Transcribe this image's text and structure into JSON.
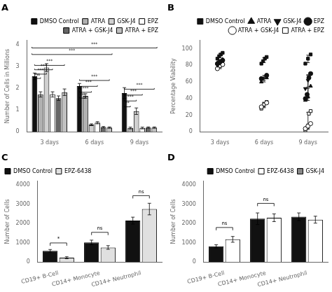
{
  "chart_data": [
    {
      "type": "bar",
      "title": "A",
      "categories": [
        "3 days",
        "6 days",
        "9 days"
      ],
      "series": [
        {
          "name": "DMSO Control",
          "color": "#111111",
          "values": [
            2.55,
            2.1,
            1.78
          ],
          "errors": [
            0.15,
            0.12,
            0.25
          ]
        },
        {
          "name": "ATRA",
          "color": "#b0b0b0",
          "values": [
            1.72,
            1.65,
            0.18
          ],
          "errors": [
            0.12,
            0.1,
            0.04
          ]
        },
        {
          "name": "GSK-J4",
          "color": "#d0d0d0",
          "values": [
            2.95,
            0.33,
            0.95
          ],
          "errors": [
            0.18,
            0.04,
            0.15
          ]
        },
        {
          "name": "EPZ",
          "color": "#ffffff",
          "values": [
            1.72,
            0.42,
            0.18
          ],
          "errors": [
            0.12,
            0.05,
            0.04
          ]
        },
        {
          "name": "ATRA + GSK-J4",
          "color": "#666666",
          "values": [
            1.55,
            0.22,
            0.2
          ],
          "errors": [
            0.1,
            0.03,
            0.03
          ]
        },
        {
          "name": "ATRA + EPZ",
          "color": "#c0c0c0",
          "values": [
            1.82,
            0.2,
            0.2
          ],
          "errors": [
            0.15,
            0.03,
            0.03
          ]
        }
      ],
      "ylabel": "Number of Cells in Millions",
      "ylim": [
        0,
        4.2
      ],
      "yticks": [
        0,
        1,
        2,
        3,
        4
      ],
      "grid": false,
      "legend": "upper right",
      "annotations": [
        {
          "text": "ns",
          "y": 2.45,
          "from": {
            "category": "3 days",
            "series": "DMSO Control"
          },
          "to": {
            "category": "3 days",
            "series": "ATRA"
          }
        },
        {
          "text": "***",
          "y": 2.65,
          "from": {
            "category": "3 days",
            "series": "DMSO Control"
          },
          "to": {
            "category": "3 days",
            "series": "GSK-J4"
          }
        },
        {
          "text": "***",
          "y": 2.85,
          "from": {
            "category": "3 days",
            "series": "DMSO Control"
          },
          "to": {
            "category": "3 days",
            "series": "EPZ"
          }
        },
        {
          "text": "***",
          "y": 3.05,
          "from": {
            "category": "3 days",
            "series": "DMSO Control"
          },
          "to": {
            "category": "3 days",
            "series": "ATRA + EPZ"
          }
        },
        {
          "text": "***",
          "y": 3.55,
          "from": {
            "category": "3 days"
          },
          "to": {
            "category": "6 days"
          }
        },
        {
          "text": "***",
          "y": 3.85,
          "from": {
            "category": "3 days"
          },
          "to": {
            "category": "9 days"
          }
        },
        {
          "text": "ns",
          "y": 1.55,
          "from": {
            "category": "6 days",
            "series": "DMSO Control"
          },
          "to": {
            "category": "6 days",
            "series": "ATRA"
          }
        },
        {
          "text": "***",
          "y": 1.82,
          "from": {
            "category": "6 days",
            "series": "DMSO Control"
          },
          "to": {
            "category": "6 days",
            "series": "GSK-J4"
          }
        },
        {
          "text": "***",
          "y": 2.09,
          "from": {
            "category": "6 days",
            "series": "DMSO Control"
          },
          "to": {
            "category": "6 days",
            "series": "EPZ"
          }
        },
        {
          "text": "***",
          "y": 2.36,
          "from": {
            "category": "6 days",
            "series": "DMSO Control"
          },
          "to": {
            "category": "6 days",
            "series": "ATRA + EPZ"
          }
        },
        {
          "text": "**",
          "y": 1.15,
          "from": {
            "category": "9 days",
            "series": "DMSO Control"
          },
          "to": {
            "category": "9 days",
            "series": "ATRA"
          }
        },
        {
          "text": "***",
          "y": 1.42,
          "from": {
            "category": "9 days",
            "series": "DMSO Control"
          },
          "to": {
            "category": "9 days",
            "series": "GSK-J4"
          }
        },
        {
          "text": "***",
          "y": 1.69,
          "from": {
            "category": "9 days",
            "series": "DMSO Control"
          },
          "to": {
            "category": "9 days",
            "series": "EPZ"
          }
        },
        {
          "text": "***",
          "y": 1.96,
          "from": {
            "category": "9 days",
            "series": "DMSO Control"
          },
          "to": {
            "category": "9 days",
            "series": "ATRA + EPZ"
          }
        }
      ]
    },
    {
      "type": "scatter",
      "title": "B",
      "categories": [
        "3 days",
        "6 days",
        "9 days"
      ],
      "series": [
        {
          "name": "DMSO Control",
          "color": "#111111",
          "marker": "square",
          "values": [
            [
              88,
              91,
              93,
              95
            ],
            [
              82,
              85,
              88,
              90
            ],
            [
              82,
              88,
              93
            ]
          ],
          "means": [
            91.75,
            86.25,
            87.667
          ],
          "errors": [
            2.586,
            3.031,
            4.497
          ]
        },
        {
          "name": "ATRA",
          "color": "#111111",
          "marker": "triangle-up",
          "values": [
            [
              83,
              87
            ],
            [
              60,
              65
            ],
            [
              38,
              42,
              55
            ]
          ],
          "means": [
            85,
            62.5,
            45
          ],
          "errors": [
            2,
            2.5,
            7.257
          ]
        },
        {
          "name": "GSK-J4",
          "color": "#111111",
          "marker": "triangle-down",
          "values": [
            [
              80,
              83,
              86
            ],
            [
              62,
              66
            ],
            [
              52,
              62,
              70
            ]
          ],
          "means": [
            83,
            64,
            61.333
          ],
          "errors": [
            2.449,
            2,
            7.364
          ]
        },
        {
          "name": "EPZ",
          "color": "#111111",
          "marker": "circle",
          "values": [
            [
              82,
              84,
              86
            ],
            [
              64,
              68
            ],
            [
              40,
              45,
              65,
              70
            ]
          ],
          "means": [
            84,
            66,
            55
          ],
          "errors": [
            1.633,
            2,
            12.748
          ]
        },
        {
          "name": "ATRA + GSK-J4",
          "color": "#111111",
          "marker": "circle-open",
          "values": [
            [
              76,
              81
            ],
            [
              30,
              35
            ],
            [
              4,
              7,
              10
            ]
          ],
          "means": [
            78.5,
            32.5,
            7
          ],
          "errors": [
            2.5,
            2.5,
            2.449
          ]
        },
        {
          "name": "ATRA + EPZ",
          "color": "#111111",
          "marker": "square-open",
          "values": [
            [
              79
            ],
            [
              28,
              33,
              36
            ],
            [
              2,
              5,
              22,
              25
            ]
          ],
          "means": [
            79,
            32.333,
            13.5
          ],
          "errors": [
            0,
            3.3,
            10.112
          ]
        }
      ],
      "ylabel": "Percentage Viability",
      "ylim": [
        0,
        110
      ],
      "yticks": [
        0,
        20,
        40,
        60,
        80,
        100
      ],
      "grid": false,
      "legend": "upper right"
    },
    {
      "type": "bar",
      "title": "C",
      "categories": [
        "CD19+ B-Cell",
        "CD14+ Monocyte",
        "CD14+ Neutrophil"
      ],
      "series": [
        {
          "name": "DMSO Control",
          "color": "#111111",
          "values": [
            580,
            1020,
            2150
          ],
          "errors": [
            75,
            120,
            180
          ]
        },
        {
          "name": "EPZ-6438",
          "color": "#e0e0e0",
          "values": [
            230,
            760,
            2750
          ],
          "errors": [
            50,
            95,
            300
          ]
        }
      ],
      "ylabel": "Number of Cells",
      "ylim": [
        0,
        4200
      ],
      "yticks": [
        0,
        1000,
        2000,
        3000,
        4000
      ],
      "grid": false,
      "legend": "upper left",
      "annotations": [
        {
          "text": "*",
          "y": 850,
          "category": "CD19+ B-Cell"
        },
        {
          "text": "ns",
          "y": 1400,
          "category": "CD14+ Monocyte"
        },
        {
          "text": "ns",
          "y": 3300,
          "category": "CD14+ Neutrophil"
        }
      ]
    },
    {
      "type": "bar",
      "title": "D",
      "categories": [
        "CD19+ B-Cell",
        "CD14+ Monocyte",
        "CD14+ Neutrophil"
      ],
      "series": [
        {
          "name": "DMSO Control",
          "color": "#111111",
          "values": [
            820,
            2250,
            2350
          ],
          "errors": [
            80,
            300,
            200
          ]
        },
        {
          "name": "EPZ-6438",
          "color": "#ffffff",
          "values": [
            1180,
            2300,
            2200
          ],
          "errors": [
            150,
            200,
            180
          ]
        },
        {
          "name": "GSK-J4",
          "color": "#888888",
          "values": [
            null,
            null,
            null
          ],
          "errors": [
            null,
            null,
            null
          ]
        }
      ],
      "ylabel": "Number of Cells",
      "ylim": [
        0,
        4200
      ],
      "yticks": [
        0,
        1000,
        2000,
        3000,
        4000
      ],
      "grid": false,
      "legend": "upper right",
      "annotations": [
        {
          "text": "ns",
          "y": 1650,
          "category": "CD19+ B-Cell"
        },
        {
          "text": "ns",
          "y": 2900,
          "category": "CD14+ Monocyte"
        }
      ]
    }
  ]
}
